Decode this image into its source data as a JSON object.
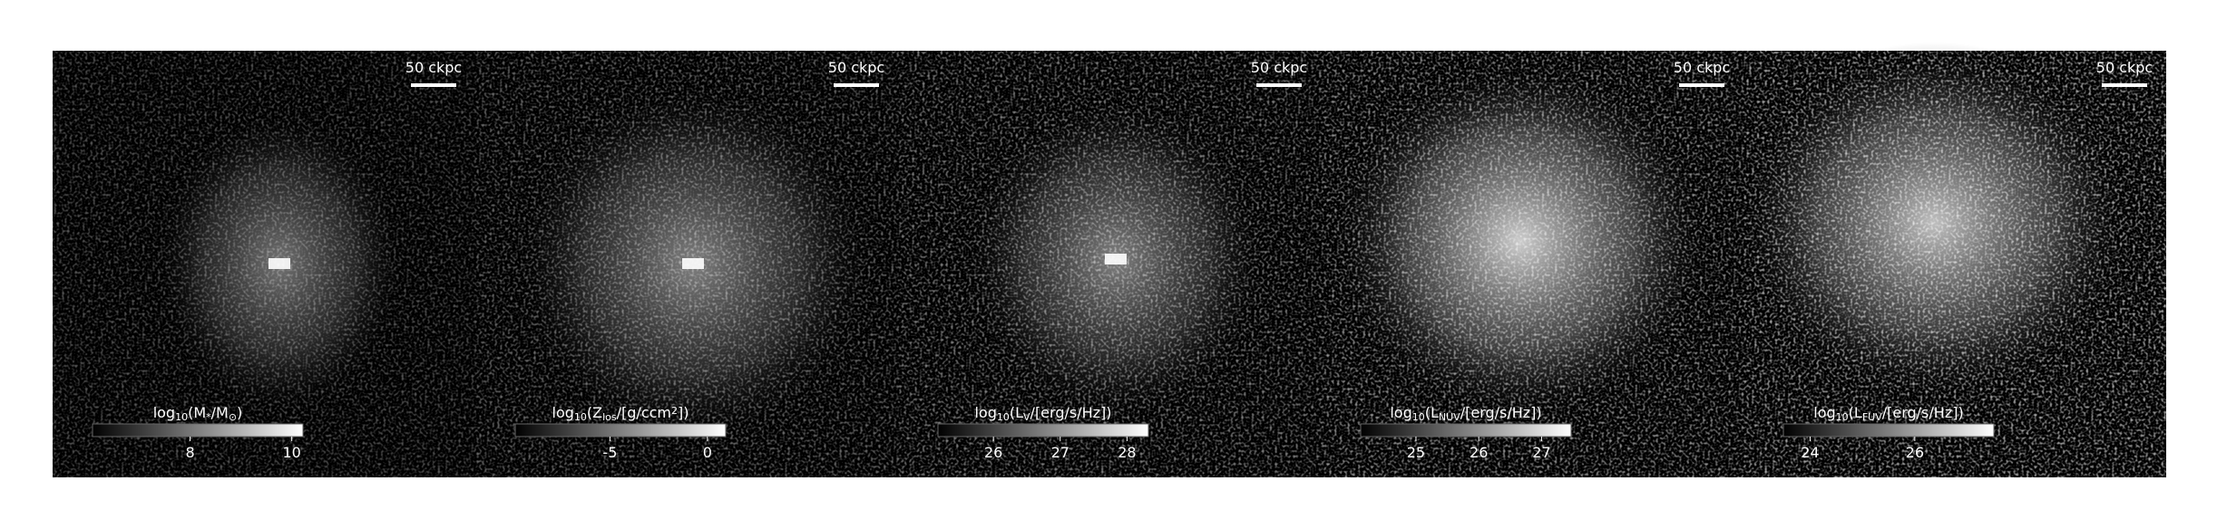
{
  "panels": [
    {
      "scale_label": "50 ckpc",
      "colorbar": {
        "label": [
          {
            "text": "log"
          },
          {
            "text": "10",
            "sub": true
          },
          {
            "text": "(M"
          },
          {
            "text": "*",
            "sub": true
          },
          {
            "text": "/M"
          },
          {
            "text": "⊙",
            "sub": true
          },
          {
            "text": ")"
          }
        ],
        "lim": [
          6.08,
          10.22
        ],
        "ticks": [
          8,
          10
        ]
      }
    },
    {
      "scale_label": "50 ckpc",
      "colorbar": {
        "label": [
          {
            "text": "log"
          },
          {
            "text": "10",
            "sub": true
          },
          {
            "text": "(Z"
          },
          {
            "text": "los",
            "sub": true
          },
          {
            "text": "/[g/ccm"
          },
          {
            "text": "2",
            "sup": true
          },
          {
            "text": "])"
          }
        ],
        "lim": [
          -9.86,
          0.94
        ],
        "ticks": [
          -5,
          0
        ]
      }
    },
    {
      "scale_label": "50 ckpc",
      "colorbar": {
        "label": [
          {
            "text": "log"
          },
          {
            "text": "10",
            "sub": true
          },
          {
            "text": "(L"
          },
          {
            "text": "V",
            "sub": true
          },
          {
            "text": "/[erg/s/Hz])"
          }
        ],
        "lim": [
          25.17,
          28.32
        ],
        "ticks": [
          26,
          27,
          28
        ]
      }
    },
    {
      "scale_label": "50 ckpc",
      "colorbar": {
        "label": [
          {
            "text": "log"
          },
          {
            "text": "10",
            "sub": true
          },
          {
            "text": "(L"
          },
          {
            "text": "NUV",
            "sub": true
          },
          {
            "text": "/[erg/s/Hz])"
          }
        ],
        "lim": [
          24.12,
          27.47
        ],
        "ticks": [
          25,
          26,
          27
        ]
      }
    },
    {
      "scale_label": "50 ckpc",
      "colorbar": {
        "label": [
          {
            "text": "log"
          },
          {
            "text": "10",
            "sub": true
          },
          {
            "text": "(L"
          },
          {
            "text": "FUV",
            "sub": true
          },
          {
            "text": "/[erg/s/Hz])"
          }
        ],
        "lim": [
          23.49,
          27.51
        ],
        "ticks": [
          24,
          26
        ]
      }
    }
  ]
}
